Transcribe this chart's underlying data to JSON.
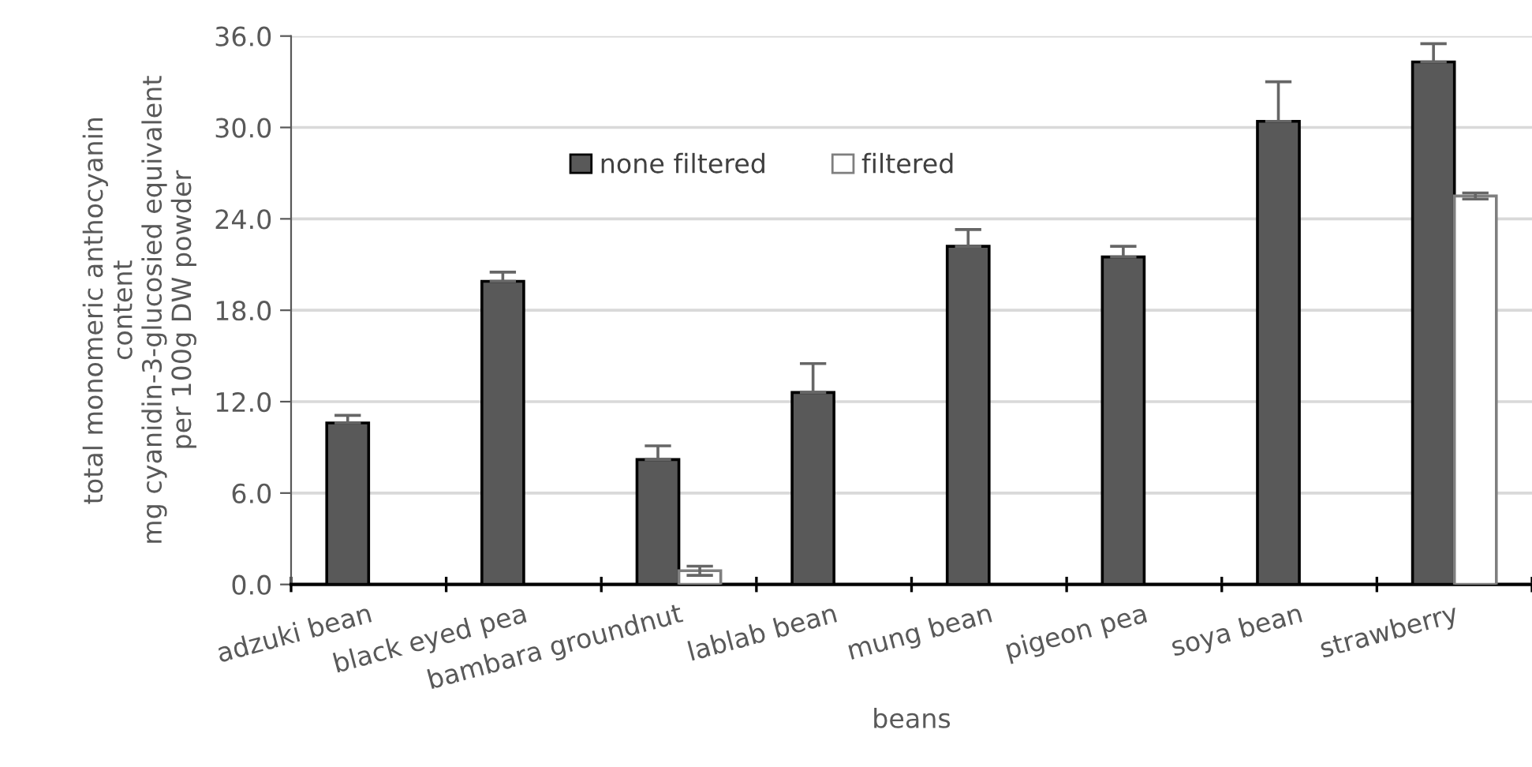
{
  "chart_data": {
    "type": "bar",
    "xlabel": "beans",
    "ylabel": "total monomeric anthocyanin\ncontent\nmg cyanidin-3-glucosied equivalent\nper 100g DW powder",
    "categories": [
      "adzuki bean",
      "black eyed pea",
      "bambara groundnut",
      "lablab bean",
      "mung bean",
      "pigeon pea",
      "soya bean",
      "strawberry"
    ],
    "series": [
      {
        "name": "none filtered",
        "color": "#595959",
        "values": [
          10.6,
          19.9,
          8.2,
          12.6,
          22.2,
          21.5,
          30.4,
          34.3
        ],
        "errors": [
          [
            10.6,
            11.1
          ],
          [
            19.9,
            20.5
          ],
          [
            8.2,
            9.1
          ],
          [
            12.6,
            14.5
          ],
          [
            22.2,
            23.3
          ],
          [
            21.5,
            22.2
          ],
          [
            30.4,
            33.0
          ],
          [
            34.3,
            35.5
          ]
        ]
      },
      {
        "name": "filtered",
        "color": "#ffffff",
        "values": [
          0,
          0,
          0.9,
          0,
          0,
          0,
          0,
          25.5
        ],
        "errors": [
          null,
          null,
          0.3,
          null,
          null,
          null,
          null,
          0.2
        ]
      }
    ],
    "ylim": [
      0,
      36
    ],
    "yticks": [
      {
        "value": 0,
        "label": "0.0"
      },
      {
        "value": 6,
        "label": "6.0"
      },
      {
        "value": 12,
        "label": "12.0"
      },
      {
        "value": 18,
        "label": "18.0"
      },
      {
        "value": 24,
        "label": "24.0"
      },
      {
        "value": 30,
        "label": "30.0"
      },
      {
        "value": 36,
        "label": "36.0"
      }
    ],
    "grid": "y",
    "legend": "top"
  }
}
